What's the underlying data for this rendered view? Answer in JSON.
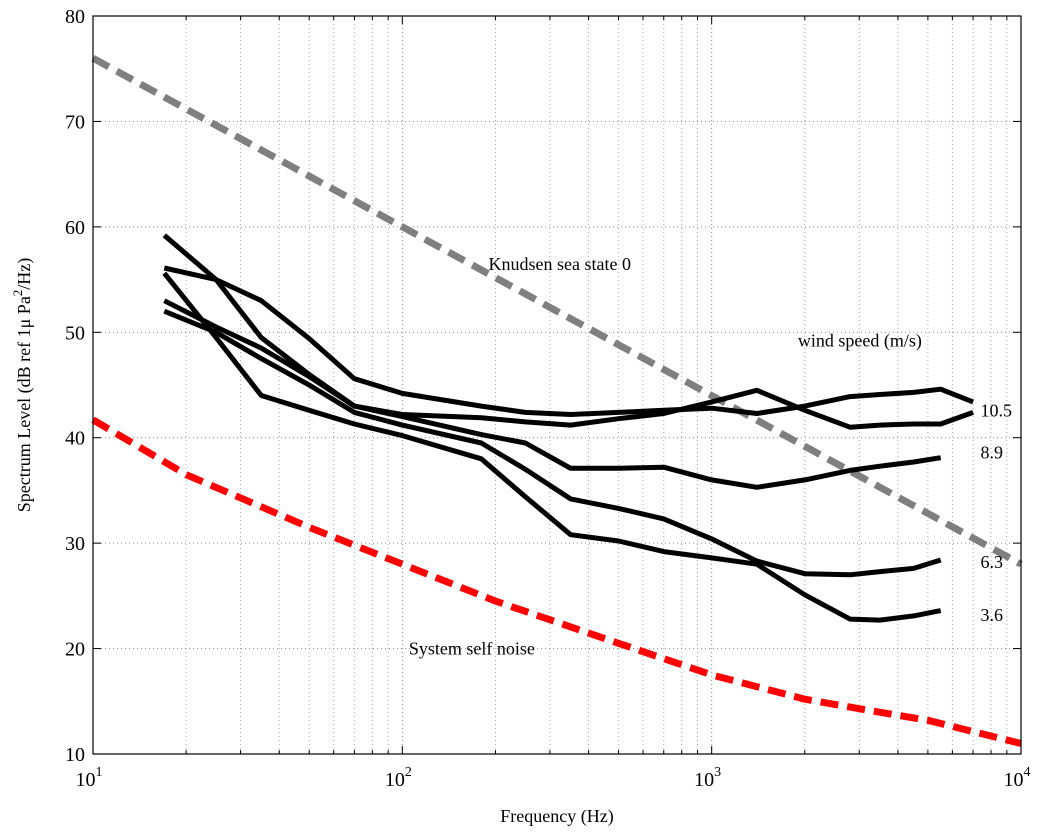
{
  "chart_data": {
    "type": "line",
    "xscale": "log",
    "xlim": [
      10,
      10000
    ],
    "ylim": [
      10,
      80
    ],
    "grid": true,
    "xlabel": "Frequency (Hz)",
    "ylabel_parts": [
      "Spectrum Level (dB ref 1μ Pa",
      "2",
      "/Hz)"
    ],
    "x_ticks": [
      {
        "base": "10",
        "exp": "1",
        "value": 10
      },
      {
        "base": "10",
        "exp": "2",
        "value": 100
      },
      {
        "base": "10",
        "exp": "3",
        "value": 1000
      },
      {
        "base": "10",
        "exp": "4",
        "value": 10000
      }
    ],
    "y_ticks": [
      "10",
      "20",
      "30",
      "40",
      "50",
      "60",
      "70",
      "80"
    ],
    "series": [
      {
        "name": "Knudsen sea state 0",
        "color": "#7f7f7f",
        "style": "dashed",
        "x": [
          10,
          10000
        ],
        "y": [
          76,
          28
        ]
      },
      {
        "name": "System self noise",
        "color": "#ff0000",
        "style": "dashed",
        "x": [
          10,
          20,
          50,
          100,
          200,
          500,
          1000,
          2000,
          3000,
          5000,
          10000
        ],
        "y": [
          41.7,
          36.5,
          31.5,
          28,
          24.5,
          20.5,
          17.5,
          15.2,
          14.3,
          13.2,
          11
        ]
      },
      {
        "label": "10.5",
        "color": "#000000",
        "style": "solid",
        "x": [
          17,
          25,
          35,
          50,
          70,
          100,
          180,
          250,
          350,
          500,
          700,
          1000,
          1400,
          2000,
          2800,
          3500,
          4500,
          5500,
          7000
        ],
        "y": [
          59.2,
          55,
          49.5,
          46,
          43,
          42.2,
          41.9,
          41.5,
          41.2,
          41.8,
          42.3,
          43.4,
          44.5,
          42.6,
          41,
          41.2,
          41.3,
          41.3,
          42.4
        ]
      },
      {
        "label": "10.5",
        "color": "#000000",
        "style": "solid",
        "x": [
          17,
          25,
          35,
          50,
          70,
          100,
          180,
          250,
          350,
          500,
          700,
          1000,
          1400,
          2000,
          2800,
          3500,
          4500,
          5500,
          7000
        ],
        "y": [
          56.1,
          55,
          53,
          49.4,
          45.6,
          44.2,
          43,
          42.4,
          42.2,
          42.4,
          42.6,
          42.8,
          42.3,
          43,
          43.9,
          44.1,
          44.3,
          44.6,
          43.4
        ]
      },
      {
        "label": "8.9",
        "color": "#000000",
        "style": "solid",
        "x": [
          17,
          25,
          35,
          50,
          70,
          100,
          180,
          250,
          350,
          500,
          700,
          1000,
          1400,
          2000,
          2800,
          3500,
          4500,
          5500
        ],
        "y": [
          53,
          50.5,
          48.5,
          45.8,
          43,
          42,
          40.3,
          39.5,
          37.1,
          37.1,
          37.2,
          36,
          35.3,
          36,
          36.9,
          37.3,
          37.7,
          38.1
        ]
      },
      {
        "label": "6.3",
        "color": "#000000",
        "style": "solid",
        "x": [
          17,
          25,
          35,
          50,
          70,
          100,
          180,
          250,
          350,
          500,
          700,
          1000,
          1400,
          2000,
          2800,
          3500,
          4500,
          5500
        ],
        "y": [
          52,
          50,
          47.5,
          45,
          42.4,
          41.2,
          39.5,
          37,
          34.2,
          33.3,
          32.3,
          30.4,
          28.3,
          27.1,
          27,
          27.3,
          27.6,
          28.4
        ]
      },
      {
        "label": "3.6",
        "color": "#000000",
        "style": "solid",
        "x": [
          17,
          25,
          35,
          50,
          70,
          100,
          180,
          250,
          350,
          500,
          700,
          1000,
          1400,
          2000,
          2800,
          3500,
          4500,
          5500
        ],
        "y": [
          55.6,
          49.5,
          44,
          42.6,
          41.3,
          40.2,
          38,
          34.4,
          30.8,
          30.2,
          29.2,
          28.6,
          28,
          25.1,
          22.8,
          22.7,
          23.1,
          23.6
        ]
      }
    ],
    "annotations": [
      {
        "text": "Knudsen sea state 0",
        "x": 190,
        "y": 56.5
      },
      {
        "text": "wind speed (m/s)",
        "x": 1900,
        "y": 49.2
      },
      {
        "text": "10.5",
        "x": 7400,
        "y": 42.6
      },
      {
        "text": "8.9",
        "x": 7400,
        "y": 38.6
      },
      {
        "text": "6.3",
        "x": 7400,
        "y": 28.2
      },
      {
        "text": "3.6",
        "x": 7400,
        "y": 23.2
      },
      {
        "text": "System self noise",
        "x": 105,
        "y": 20.0
      }
    ]
  }
}
